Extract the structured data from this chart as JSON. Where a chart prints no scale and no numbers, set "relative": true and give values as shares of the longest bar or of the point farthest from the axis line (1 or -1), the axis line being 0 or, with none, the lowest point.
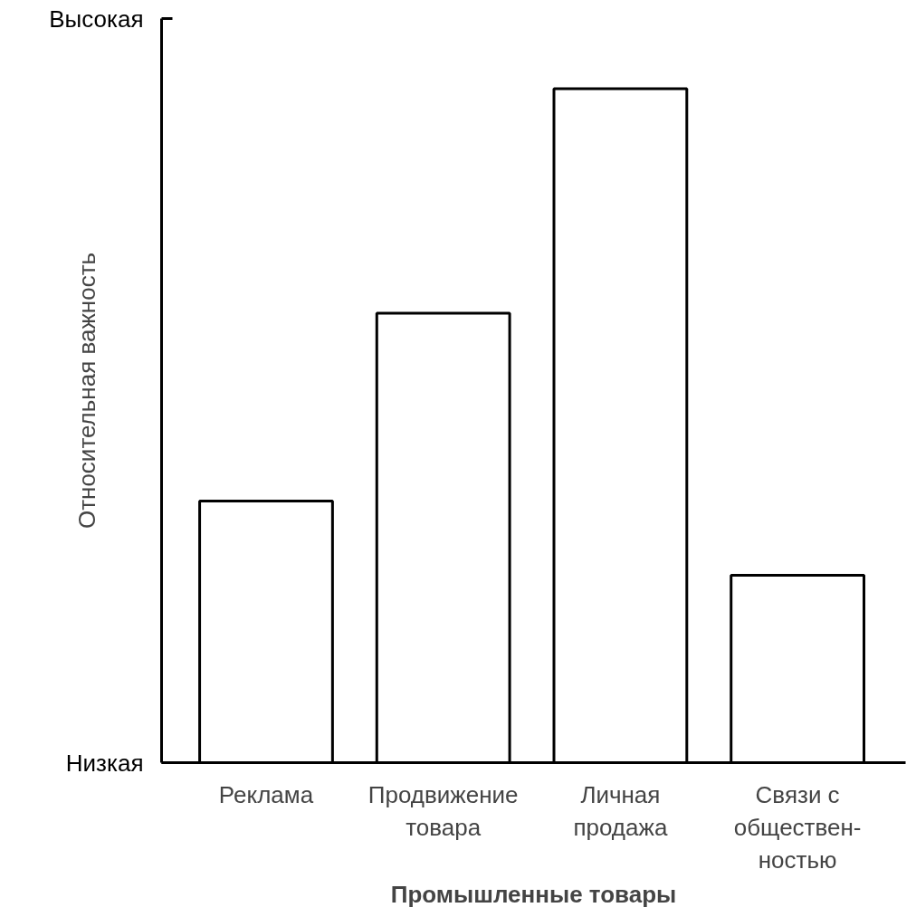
{
  "chart_data": {
    "type": "bar",
    "xlabel": "Промышленные товары",
    "ylabel": "Относительная важность",
    "categories": [
      "Реклама",
      "Продвижение\nтовара",
      "Личная\nпродажа",
      "Связи с\nобществен-\nностью"
    ],
    "values": [
      0.388,
      0.667,
      1,
      0.278
    ],
    "color": "#ffffff",
    "relative": true,
    "annotations": [
      "Высокая",
      "Низкая"
    ],
    "grid": false
  }
}
